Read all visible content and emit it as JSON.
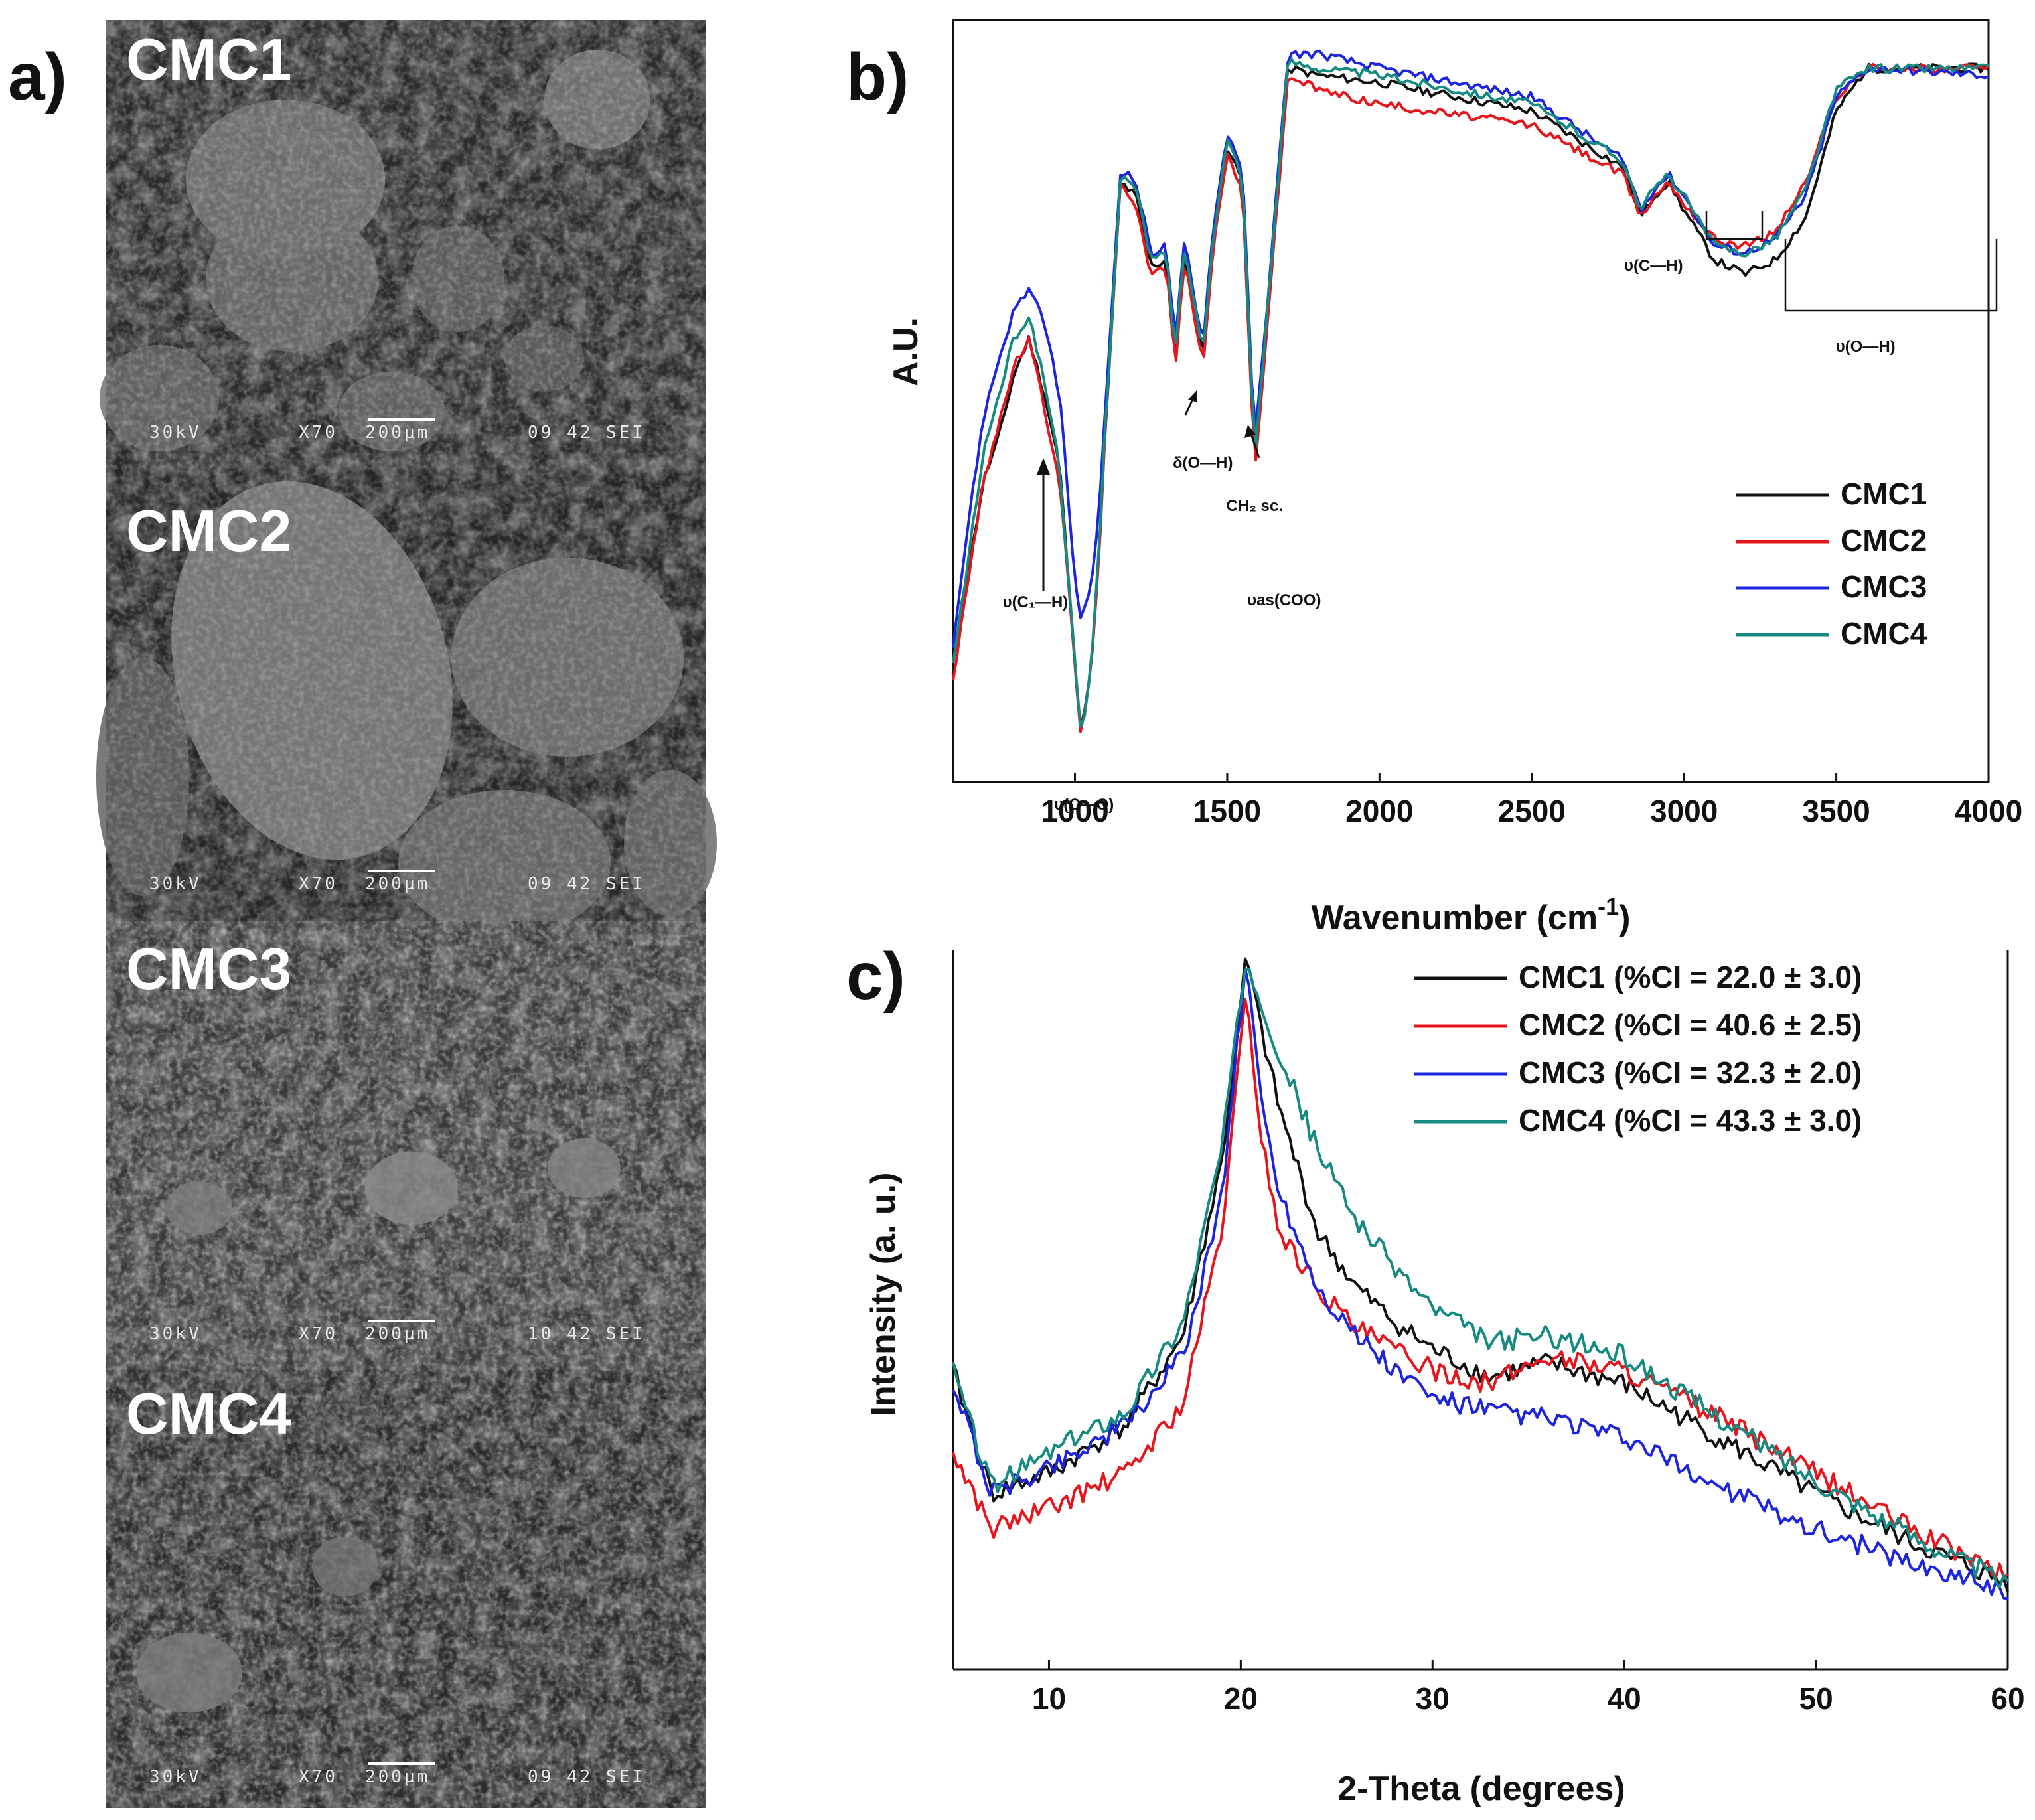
{
  "panel_a": {
    "label": "a)",
    "images": [
      {
        "name": "CMC1",
        "info": [
          "30kV",
          "X70",
          "200µm",
          "09 42 SEI"
        ]
      },
      {
        "name": "CMC2",
        "info": [
          "30kV",
          "X70",
          "200µm",
          "09 42 SEI"
        ]
      },
      {
        "name": "CMC3",
        "info": [
          "30kV",
          "X70",
          "200µm",
          "10 42 SEI"
        ]
      },
      {
        "name": "CMC4",
        "info": [
          "30kV",
          "X70",
          "200µm",
          "09 42 SEI"
        ]
      }
    ]
  },
  "chart_data": [
    {
      "panel": "b)",
      "type": "line",
      "title": "",
      "xlabel": "Wavenumber (cm",
      "xlabel_sup": "-1",
      "xlabel_end": ")",
      "ylabel": "A.U.",
      "xlim": [
        600,
        4000
      ],
      "ylim": [
        0,
        1
      ],
      "xticks": [
        1000,
        1500,
        2000,
        2500,
        3000,
        3500,
        4000
      ],
      "legend": [
        "CMC1",
        "CMC2",
        "CMC3",
        "CMC4"
      ],
      "legend_position": "bottom-right",
      "colors": {
        "CMC1": "#111111",
        "CMC2": "#e8141c",
        "CMC3": "#1c24e0",
        "CMC4": "#148a80"
      },
      "annotations": [
        {
          "text": "υ(C₁—H)",
          "x": 870
        },
        {
          "text": "υ(C—O)",
          "x": 1030
        },
        {
          "text": "δ(O—H)",
          "x": 1420
        },
        {
          "text": "CH₂ sc.",
          "x": 1590
        },
        {
          "text": "υas(COO)",
          "x": 1600
        },
        {
          "text": "υ(C—H)",
          "x": 2900
        },
        {
          "text": "υ(O—H)",
          "x": 3400
        }
      ],
      "series": [
        {
          "name": "CMC1",
          "x": [
            600,
            650,
            700,
            750,
            800,
            850,
            900,
            950,
            1000,
            1020,
            1050,
            1080,
            1100,
            1150,
            1200,
            1250,
            1300,
            1330,
            1360,
            1420,
            1450,
            1500,
            1550,
            1590,
            1620,
            1700,
            1800,
            2000,
            2500,
            2800,
            2860,
            2900,
            2950,
            3000,
            3100,
            3200,
            3300,
            3400,
            3500,
            3600,
            4000
          ],
          "y": [
            0.12,
            0.25,
            0.38,
            0.44,
            0.53,
            0.58,
            0.5,
            0.4,
            0.12,
            0.03,
            0.1,
            0.28,
            0.45,
            0.8,
            0.78,
            0.68,
            0.69,
            0.55,
            0.7,
            0.55,
            0.7,
            0.85,
            0.8,
            0.4,
            0.55,
            0.96,
            0.95,
            0.94,
            0.9,
            0.82,
            0.75,
            0.78,
            0.8,
            0.76,
            0.69,
            0.67,
            0.69,
            0.75,
            0.9,
            0.96,
            0.96
          ]
        },
        {
          "name": "CMC2",
          "x": [
            600,
            650,
            700,
            750,
            800,
            850,
            900,
            950,
            1000,
            1020,
            1050,
            1080,
            1100,
            1150,
            1200,
            1250,
            1300,
            1330,
            1360,
            1420,
            1450,
            1500,
            1550,
            1590,
            1620,
            1700,
            1800,
            2000,
            2500,
            2800,
            2860,
            2900,
            2950,
            3000,
            3100,
            3200,
            3300,
            3400,
            3500,
            3600,
            4000
          ],
          "y": [
            0.1,
            0.24,
            0.38,
            0.46,
            0.54,
            0.58,
            0.48,
            0.38,
            0.12,
            0.02,
            0.1,
            0.28,
            0.45,
            0.8,
            0.77,
            0.67,
            0.68,
            0.54,
            0.69,
            0.54,
            0.69,
            0.84,
            0.79,
            0.39,
            0.54,
            0.95,
            0.93,
            0.91,
            0.88,
            0.81,
            0.75,
            0.78,
            0.8,
            0.77,
            0.72,
            0.71,
            0.73,
            0.8,
            0.92,
            0.96,
            0.96
          ]
        },
        {
          "name": "CMC3",
          "x": [
            600,
            650,
            700,
            750,
            800,
            850,
            900,
            950,
            1000,
            1020,
            1050,
            1080,
            1100,
            1150,
            1200,
            1250,
            1300,
            1330,
            1360,
            1420,
            1450,
            1500,
            1550,
            1590,
            1620,
            1700,
            1800,
            2000,
            2500,
            2800,
            2860,
            2900,
            2950,
            3000,
            3100,
            3200,
            3300,
            3400,
            3500,
            3600,
            4000
          ],
          "y": [
            0.15,
            0.32,
            0.47,
            0.55,
            0.62,
            0.65,
            0.6,
            0.5,
            0.24,
            0.18,
            0.22,
            0.34,
            0.48,
            0.82,
            0.8,
            0.7,
            0.71,
            0.57,
            0.72,
            0.57,
            0.72,
            0.87,
            0.82,
            0.43,
            0.57,
            0.98,
            0.98,
            0.96,
            0.92,
            0.83,
            0.76,
            0.79,
            0.81,
            0.78,
            0.71,
            0.7,
            0.72,
            0.78,
            0.92,
            0.96,
            0.95
          ]
        },
        {
          "name": "CMC4",
          "x": [
            600,
            650,
            700,
            750,
            800,
            850,
            900,
            950,
            1000,
            1020,
            1050,
            1080,
            1100,
            1150,
            1200,
            1250,
            1300,
            1330,
            1360,
            1420,
            1450,
            1500,
            1550,
            1590,
            1620,
            1700,
            1800,
            2000,
            2500,
            2800,
            2860,
            2900,
            2950,
            3000,
            3100,
            3200,
            3300,
            3400,
            3500,
            3600,
            4000
          ],
          "y": [
            0.12,
            0.27,
            0.42,
            0.5,
            0.58,
            0.61,
            0.52,
            0.4,
            0.12,
            0.02,
            0.1,
            0.29,
            0.46,
            0.81,
            0.79,
            0.69,
            0.7,
            0.56,
            0.71,
            0.56,
            0.71,
            0.86,
            0.81,
            0.41,
            0.56,
            0.97,
            0.96,
            0.95,
            0.91,
            0.83,
            0.76,
            0.79,
            0.81,
            0.78,
            0.71,
            0.7,
            0.72,
            0.79,
            0.93,
            0.96,
            0.96
          ]
        }
      ]
    },
    {
      "panel": "c)",
      "type": "line",
      "title": "",
      "xlabel": "2-Theta (degrees)",
      "ylabel": "Intensity (a. u.)",
      "xlim": [
        5,
        60
      ],
      "ylim": [
        0,
        1
      ],
      "xticks": [
        10,
        20,
        30,
        40,
        50,
        60
      ],
      "legend": [
        "CMC1 (%CI = 22.0 ± 3.0)",
        "CMC2 (%CI = 40.6 ± 2.5)",
        "CMC3 (%CI = 32.3 ± 2.0)",
        "CMC4 (%CI = 43.3 ± 3.0)"
      ],
      "legend_position": "top-right",
      "colors": {
        "CMC1": "#111111",
        "CMC2": "#e8141c",
        "CMC3": "#1c24e0",
        "CMC4": "#148a80"
      },
      "series": [
        {
          "name": "CMC1",
          "x": [
            5,
            7,
            10,
            14,
            17,
            19,
            20.3,
            21,
            22,
            24,
            26,
            28,
            30,
            33,
            36,
            40,
            45,
            50,
            55,
            60
          ],
          "y": [
            0.4,
            0.22,
            0.25,
            0.32,
            0.45,
            0.7,
            1.0,
            0.9,
            0.78,
            0.6,
            0.52,
            0.47,
            0.43,
            0.39,
            0.41,
            0.38,
            0.3,
            0.22,
            0.15,
            0.09
          ]
        },
        {
          "name": "CMC2",
          "x": [
            5,
            7,
            10,
            14,
            17,
            19,
            20.3,
            21,
            22,
            24,
            26,
            28,
            30,
            33,
            36,
            40,
            45,
            50,
            55,
            60
          ],
          "y": [
            0.28,
            0.17,
            0.2,
            0.25,
            0.35,
            0.6,
            0.95,
            0.75,
            0.6,
            0.52,
            0.46,
            0.43,
            0.4,
            0.38,
            0.42,
            0.4,
            0.33,
            0.25,
            0.17,
            0.1
          ]
        },
        {
          "name": "CMC3",
          "x": [
            5,
            7,
            10,
            14,
            17,
            19,
            20.3,
            21,
            22,
            24,
            26,
            28,
            30,
            33,
            36,
            40,
            45,
            50,
            55,
            60
          ],
          "y": [
            0.38,
            0.22,
            0.26,
            0.32,
            0.42,
            0.65,
            1.0,
            0.8,
            0.66,
            0.52,
            0.45,
            0.4,
            0.36,
            0.34,
            0.33,
            0.3,
            0.23,
            0.17,
            0.12,
            0.08
          ]
        },
        {
          "name": "CMC4",
          "x": [
            5,
            7,
            10,
            14,
            17,
            19,
            20.3,
            21,
            22,
            24,
            26,
            28,
            30,
            33,
            36,
            40,
            45,
            50,
            55,
            60
          ],
          "y": [
            0.4,
            0.23,
            0.28,
            0.34,
            0.47,
            0.72,
            1.0,
            0.94,
            0.86,
            0.72,
            0.62,
            0.55,
            0.49,
            0.44,
            0.45,
            0.42,
            0.33,
            0.24,
            0.16,
            0.09
          ]
        }
      ]
    }
  ]
}
